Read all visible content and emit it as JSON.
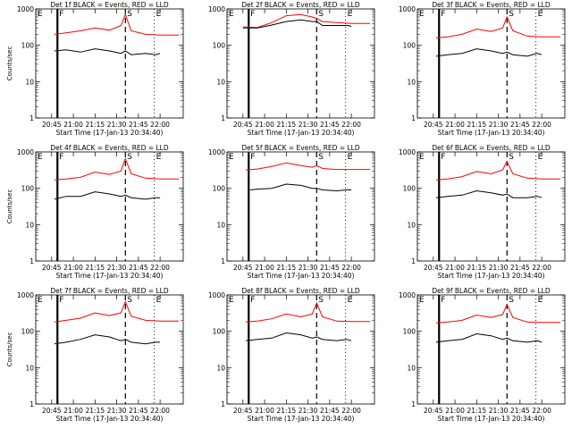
{
  "chart_data": [
    {
      "type": "line",
      "title": "Det 1f BLACK = Events, RED = LLD",
      "xlabel": "Start Time (17-Jan-13 20:34:40)",
      "ylabel": "Counts/sec",
      "x_ticks": [
        "20:45",
        "21:00",
        "21:15",
        "21:30",
        "21:45",
        "22:00"
      ],
      "y_ticks": [
        "1",
        "10",
        "100",
        "1000"
      ],
      "ylim": [
        1,
        1000
      ],
      "y_scale": "log",
      "markers": [
        {
          "label": "E",
          "time": "20:34"
        },
        {
          "label": "F",
          "time": "20:49"
        },
        {
          "label": "S",
          "time": "21:36"
        },
        {
          "label": "E",
          "time": "21:56"
        }
      ],
      "series": [
        {
          "color": "#000000",
          "x": [
            "20:47",
            "20:55",
            "21:05",
            "21:15",
            "21:25",
            "21:33",
            "21:36",
            "21:40",
            "21:50",
            "21:57",
            "22:00"
          ],
          "y": [
            70,
            75,
            65,
            80,
            70,
            60,
            70,
            55,
            60,
            55,
            60
          ]
        },
        {
          "color": "#ff0000",
          "x": [
            "20:47",
            "20:55",
            "21:05",
            "21:15",
            "21:25",
            "21:33",
            "21:36",
            "21:40",
            "21:50",
            "22:00",
            "22:13"
          ],
          "y": [
            200,
            220,
            250,
            300,
            260,
            350,
            700,
            250,
            200,
            190,
            190
          ]
        }
      ]
    },
    {
      "type": "line",
      "title": "Det 2f BLACK = Events, RED = LLD",
      "xlabel": "Start Time (17-Jan-13 20:34:40)",
      "ylabel": "",
      "x_ticks": [
        "20:45",
        "21:00",
        "21:15",
        "21:30",
        "21:45",
        "22:00"
      ],
      "y_ticks": [
        "1",
        "10",
        "100",
        "1000"
      ],
      "ylim": [
        1,
        1000
      ],
      "y_scale": "log",
      "markers": [
        {
          "label": "E",
          "time": "20:34"
        },
        {
          "label": "F",
          "time": "20:49"
        },
        {
          "label": "S",
          "time": "21:36"
        },
        {
          "label": "E",
          "time": "21:56"
        }
      ],
      "series": [
        {
          "color": "#000000",
          "x": [
            "20:45",
            "20:55",
            "21:05",
            "21:15",
            "21:25",
            "21:33",
            "21:36",
            "21:40",
            "21:50",
            "21:58",
            "22:00"
          ],
          "y": [
            300,
            300,
            360,
            450,
            500,
            450,
            450,
            350,
            350,
            350,
            330
          ]
        },
        {
          "color": "#ff0000",
          "x": [
            "20:45",
            "20:55",
            "21:05",
            "21:15",
            "21:25",
            "21:33",
            "21:36",
            "21:40",
            "21:50",
            "22:00",
            "22:13"
          ],
          "y": [
            320,
            310,
            420,
            650,
            700,
            600,
            550,
            450,
            420,
            400,
            400
          ]
        }
      ]
    },
    {
      "type": "line",
      "title": "Det 3f BLACK = Events, RED = LLD",
      "xlabel": "Start Time (17-Jan-13 20:34:40)",
      "ylabel": "",
      "x_ticks": [
        "20:45",
        "21:00",
        "21:15",
        "21:30",
        "21:45",
        "22:00"
      ],
      "y_ticks": [
        "1",
        "10",
        "100",
        "1000"
      ],
      "ylim": [
        1,
        1000
      ],
      "y_scale": "log",
      "markers": [
        {
          "label": "E",
          "time": "20:34"
        },
        {
          "label": "F",
          "time": "20:49"
        },
        {
          "label": "S",
          "time": "21:36"
        },
        {
          "label": "E",
          "time": "21:56"
        }
      ],
      "series": [
        {
          "color": "#000000",
          "x": [
            "20:47",
            "20:55",
            "21:05",
            "21:15",
            "21:25",
            "21:33",
            "21:36",
            "21:40",
            "21:50",
            "21:57",
            "22:00"
          ],
          "y": [
            50,
            55,
            60,
            80,
            70,
            60,
            65,
            55,
            50,
            60,
            55
          ]
        },
        {
          "color": "#ff0000",
          "x": [
            "20:47",
            "20:55",
            "21:05",
            "21:15",
            "21:25",
            "21:33",
            "21:36",
            "21:40",
            "21:50",
            "22:00",
            "22:13"
          ],
          "y": [
            160,
            170,
            200,
            280,
            240,
            300,
            600,
            250,
            180,
            170,
            170
          ]
        }
      ]
    },
    {
      "type": "line",
      "title": "Det 4f BLACK = Events, RED = LLD",
      "xlabel": "Start Time (17-Jan-13 20:34:40)",
      "ylabel": "Counts/sec",
      "x_ticks": [
        "20:45",
        "21:00",
        "21:15",
        "21:30",
        "21:45",
        "22:00"
      ],
      "y_ticks": [
        "1",
        "10",
        "100",
        "1000"
      ],
      "ylim": [
        1,
        1000
      ],
      "y_scale": "log",
      "markers": [
        {
          "label": "E",
          "time": "20:34"
        },
        {
          "label": "F",
          "time": "20:49"
        },
        {
          "label": "S",
          "time": "21:36"
        },
        {
          "label": "E",
          "time": "21:56"
        }
      ],
      "series": [
        {
          "color": "#000000",
          "x": [
            "20:47",
            "20:55",
            "21:05",
            "21:15",
            "21:25",
            "21:33",
            "21:36",
            "21:40",
            "21:50",
            "21:57",
            "22:00"
          ],
          "y": [
            50,
            60,
            60,
            80,
            70,
            60,
            65,
            55,
            50,
            55,
            55
          ]
        },
        {
          "color": "#ff0000",
          "x": [
            "20:47",
            "20:55",
            "21:05",
            "21:15",
            "21:25",
            "21:33",
            "21:36",
            "21:40",
            "21:50",
            "22:00",
            "22:13"
          ],
          "y": [
            170,
            180,
            200,
            280,
            240,
            300,
            650,
            250,
            190,
            180,
            180
          ]
        }
      ]
    },
    {
      "type": "line",
      "title": "Det 5f BLACK = Events, RED = LLD",
      "xlabel": "Start Time (17-Jan-13 20:34:40)",
      "ylabel": "",
      "x_ticks": [
        "20:45",
        "21:00",
        "21:15",
        "21:30",
        "21:45",
        "22:00"
      ],
      "y_ticks": [
        "1",
        "10",
        "100",
        "1000"
      ],
      "ylim": [
        1,
        1000
      ],
      "y_scale": "log",
      "markers": [
        {
          "label": "E",
          "time": "20:34"
        },
        {
          "label": "F",
          "time": "20:49"
        },
        {
          "label": "S",
          "time": "21:36"
        },
        {
          "label": "E",
          "time": "21:56"
        }
      ],
      "series": [
        {
          "color": "#000000",
          "x": [
            "20:50",
            "20:55",
            "21:05",
            "21:15",
            "21:25",
            "21:33",
            "21:36",
            "21:40",
            "21:50",
            "21:57",
            "22:00"
          ],
          "y": [
            90,
            95,
            100,
            130,
            120,
            100,
            100,
            90,
            85,
            90,
            90
          ]
        },
        {
          "color": "#ff0000",
          "x": [
            "20:47",
            "20:55",
            "21:05",
            "21:15",
            "21:25",
            "21:33",
            "21:36",
            "21:40",
            "21:50",
            "22:00",
            "22:13"
          ],
          "y": [
            320,
            340,
            400,
            500,
            420,
            380,
            420,
            350,
            330,
            330,
            330
          ]
        }
      ]
    },
    {
      "type": "line",
      "title": "Det 6f BLACK = Events, RED = LLD",
      "xlabel": "Start Time (17-Jan-13 20:34:40)",
      "ylabel": "",
      "x_ticks": [
        "20:45",
        "21:00",
        "21:15",
        "21:30",
        "21:45",
        "22:00"
      ],
      "y_ticks": [
        "1",
        "10",
        "100",
        "1000"
      ],
      "ylim": [
        1,
        1000
      ],
      "y_scale": "log",
      "markers": [
        {
          "label": "E",
          "time": "20:34"
        },
        {
          "label": "F",
          "time": "20:49"
        },
        {
          "label": "S",
          "time": "21:36"
        },
        {
          "label": "E",
          "time": "21:56"
        }
      ],
      "series": [
        {
          "color": "#000000",
          "x": [
            "20:47",
            "20:55",
            "21:05",
            "21:15",
            "21:25",
            "21:33",
            "21:36",
            "21:40",
            "21:50",
            "21:57",
            "22:00"
          ],
          "y": [
            55,
            60,
            65,
            85,
            75,
            65,
            70,
            55,
            55,
            60,
            55
          ]
        },
        {
          "color": "#ff0000",
          "x": [
            "20:47",
            "20:55",
            "21:05",
            "21:15",
            "21:25",
            "21:33",
            "21:36",
            "21:40",
            "21:50",
            "22:00",
            "22:13"
          ],
          "y": [
            170,
            180,
            210,
            290,
            250,
            320,
            550,
            250,
            190,
            180,
            180
          ]
        }
      ]
    },
    {
      "type": "line",
      "title": "Det 7f BLACK = Events, RED = LLD",
      "xlabel": "Start Time (17-Jan-13 20:34:40)",
      "ylabel": "Counts/sec",
      "x_ticks": [
        "20:45",
        "21:00",
        "21:15",
        "21:30",
        "21:45",
        "22:00"
      ],
      "y_ticks": [
        "1",
        "10",
        "100",
        "1000"
      ],
      "ylim": [
        1,
        1000
      ],
      "y_scale": "log",
      "markers": [
        {
          "label": "E",
          "time": "20:34"
        },
        {
          "label": "F",
          "time": "20:49"
        },
        {
          "label": "S",
          "time": "21:36"
        },
        {
          "label": "E",
          "time": "21:56"
        }
      ],
      "series": [
        {
          "color": "#000000",
          "x": [
            "20:47",
            "20:55",
            "21:05",
            "21:15",
            "21:25",
            "21:33",
            "21:36",
            "21:40",
            "21:50",
            "21:57",
            "22:00"
          ],
          "y": [
            45,
            50,
            60,
            80,
            70,
            55,
            60,
            50,
            45,
            50,
            50
          ]
        },
        {
          "color": "#ff0000",
          "x": [
            "20:47",
            "20:55",
            "21:05",
            "21:15",
            "21:25",
            "21:33",
            "21:36",
            "21:40",
            "21:50",
            "22:00",
            "22:13"
          ],
          "y": [
            180,
            200,
            230,
            320,
            270,
            320,
            650,
            260,
            200,
            190,
            190
          ]
        }
      ]
    },
    {
      "type": "line",
      "title": "Det 8f BLACK = Events, RED = LLD",
      "xlabel": "Start Time (17-Jan-13 20:34:40)",
      "ylabel": "",
      "x_ticks": [
        "20:45",
        "21:00",
        "21:15",
        "21:30",
        "21:45",
        "22:00"
      ],
      "y_ticks": [
        "1",
        "10",
        "100",
        "1000"
      ],
      "ylim": [
        1,
        1000
      ],
      "y_scale": "log",
      "markers": [
        {
          "label": "E",
          "time": "20:34"
        },
        {
          "label": "F",
          "time": "20:49"
        },
        {
          "label": "S",
          "time": "21:36"
        },
        {
          "label": "E",
          "time": "21:56"
        }
      ],
      "series": [
        {
          "color": "#000000",
          "x": [
            "20:47",
            "20:55",
            "21:05",
            "21:15",
            "21:25",
            "21:33",
            "21:36",
            "21:40",
            "21:50",
            "21:57",
            "22:00"
          ],
          "y": [
            55,
            60,
            65,
            90,
            80,
            65,
            70,
            60,
            55,
            60,
            55
          ]
        },
        {
          "color": "#ff0000",
          "x": [
            "20:47",
            "20:55",
            "21:05",
            "21:15",
            "21:25",
            "21:33",
            "21:36",
            "21:40",
            "21:50",
            "22:00",
            "22:13"
          ],
          "y": [
            180,
            190,
            220,
            300,
            250,
            300,
            600,
            250,
            190,
            185,
            185
          ]
        }
      ]
    },
    {
      "type": "line",
      "title": "Det 9f BLACK = Events, RED = LLD",
      "xlabel": "Start Time (17-Jan-13 20:34:40)",
      "ylabel": "",
      "x_ticks": [
        "20:45",
        "21:00",
        "21:15",
        "21:30",
        "21:45",
        "22:00"
      ],
      "y_ticks": [
        "1",
        "10",
        "100",
        "1000"
      ],
      "ylim": [
        1,
        1000
      ],
      "y_scale": "log",
      "markers": [
        {
          "label": "E",
          "time": "20:34"
        },
        {
          "label": "F",
          "time": "20:49"
        },
        {
          "label": "S",
          "time": "21:36"
        },
        {
          "label": "E",
          "time": "21:56"
        }
      ],
      "series": [
        {
          "color": "#000000",
          "x": [
            "20:47",
            "20:55",
            "21:05",
            "21:15",
            "21:25",
            "21:33",
            "21:36",
            "21:40",
            "21:50",
            "21:57",
            "22:00"
          ],
          "y": [
            50,
            55,
            60,
            85,
            75,
            60,
            65,
            55,
            50,
            55,
            50
          ]
        },
        {
          "color": "#ff0000",
          "x": [
            "20:47",
            "20:55",
            "21:05",
            "21:15",
            "21:25",
            "21:33",
            "21:36",
            "21:40",
            "21:50",
            "22:00",
            "22:13"
          ],
          "y": [
            170,
            180,
            200,
            280,
            240,
            290,
            550,
            240,
            180,
            175,
            175
          ]
        }
      ]
    }
  ]
}
